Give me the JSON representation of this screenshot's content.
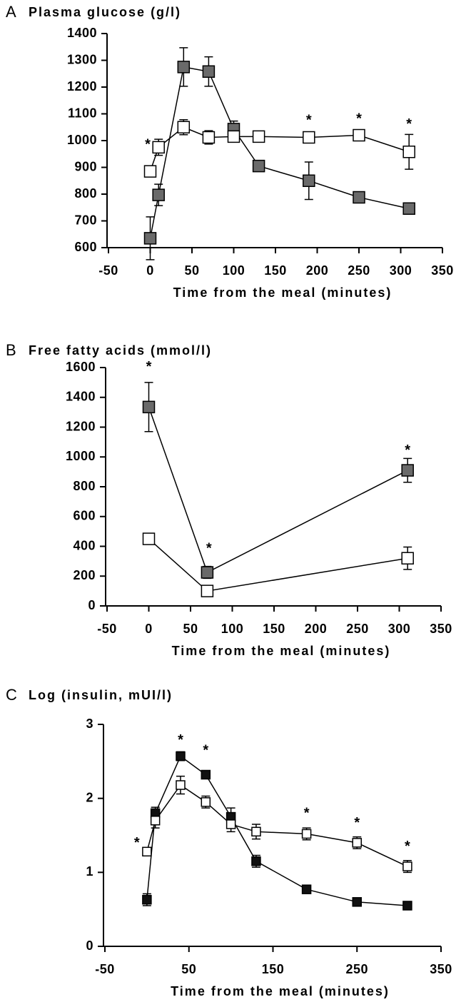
{
  "chart_data": [
    {
      "type": "line",
      "panel": "A",
      "title": "Plasma glucose (g/l)",
      "xlabel": "Time from the meal (minutes)",
      "x": [
        0,
        10,
        40,
        70,
        100,
        130,
        190,
        250,
        310
      ],
      "series": [
        {
          "color": "#6a6a6a",
          "values": [
            635,
            797,
            1275,
            1258,
            1043,
            905,
            850,
            788,
            746
          ],
          "errors": [
            80,
            40,
            72,
            55,
            30,
            15,
            70,
            10,
            10
          ]
        },
        {
          "color": "#ffffff",
          "values": [
            885,
            975,
            1050,
            1012,
            1015,
            1015,
            1012,
            1020,
            958
          ],
          "errors": [
            20,
            30,
            28,
            25,
            15,
            10,
            10,
            12,
            65
          ]
        }
      ],
      "annotations": [
        {
          "text": "*",
          "x": -3,
          "y": 1000
        },
        {
          "text": "*",
          "x": 190,
          "y": 1090
        },
        {
          "text": "*",
          "x": 250,
          "y": 1095
        },
        {
          "text": "*",
          "x": 310,
          "y": 1075
        }
      ],
      "xlim": [
        -50,
        350
      ],
      "xticks": [
        -50,
        0,
        50,
        100,
        150,
        200,
        250,
        300,
        350
      ],
      "ylim": [
        600,
        1400
      ],
      "yticks": [
        600,
        700,
        800,
        900,
        1000,
        1100,
        1200,
        1300,
        1400
      ]
    },
    {
      "type": "line",
      "panel": "B",
      "title": "Free fatty acids (mmol/l)",
      "xlabel": "Time from the meal (minutes)",
      "x": [
        0,
        70,
        310
      ],
      "series": [
        {
          "color": "#6a6a6a",
          "values": [
            1335,
            225,
            910
          ],
          "errors": [
            165,
            40,
            80
          ]
        },
        {
          "color": "#ffffff",
          "values": [
            450,
            100,
            320
          ],
          "errors": [
            10,
            10,
            75
          ]
        }
      ],
      "annotations": [
        {
          "text": "*",
          "x": 0,
          "y": 1630
        },
        {
          "text": "*",
          "x": 72,
          "y": 410
        },
        {
          "text": "*",
          "x": 310,
          "y": 1070
        }
      ],
      "xlim": [
        -50,
        350
      ],
      "xticks": [
        -50,
        0,
        50,
        100,
        150,
        200,
        250,
        300,
        350
      ],
      "ylim": [
        0,
        1600
      ],
      "yticks": [
        0,
        200,
        400,
        600,
        800,
        1000,
        1200,
        1400,
        1600
      ]
    },
    {
      "type": "line",
      "panel": "C",
      "title": "Log (insulin, mUI/l)",
      "xlabel": "Time from the meal (minutes)",
      "x": [
        0,
        10,
        40,
        70,
        100,
        130,
        190,
        250,
        310
      ],
      "series": [
        {
          "color": "#111111",
          "values": [
            0.63,
            1.8,
            2.57,
            2.32,
            1.75,
            1.15,
            0.77,
            0.6,
            0.55
          ],
          "errors": [
            0.08,
            0.08,
            0.06,
            0.05,
            0.12,
            0.08,
            0.05,
            0.03,
            0.03
          ]
        },
        {
          "color": "#ffffff",
          "values": [
            1.28,
            1.7,
            2.18,
            1.95,
            1.65,
            1.55,
            1.52,
            1.4,
            1.08
          ],
          "errors": [
            0.05,
            0.1,
            0.12,
            0.08,
            0.1,
            0.1,
            0.08,
            0.08,
            0.08
          ]
        }
      ],
      "annotations": [
        {
          "text": "*",
          "x": -12,
          "y": 1.45
        },
        {
          "text": "*",
          "x": 40,
          "y": 2.84
        },
        {
          "text": "*",
          "x": 70,
          "y": 2.7
        },
        {
          "text": "*",
          "x": 190,
          "y": 1.85
        },
        {
          "text": "*",
          "x": 250,
          "y": 1.72
        },
        {
          "text": "*",
          "x": 310,
          "y": 1.4
        }
      ],
      "xlim": [
        -50,
        350
      ],
      "xticks": [
        -50,
        50,
        150,
        250,
        350
      ],
      "ylim": [
        0,
        3
      ],
      "yticks": [
        0,
        1,
        2,
        3
      ]
    }
  ]
}
